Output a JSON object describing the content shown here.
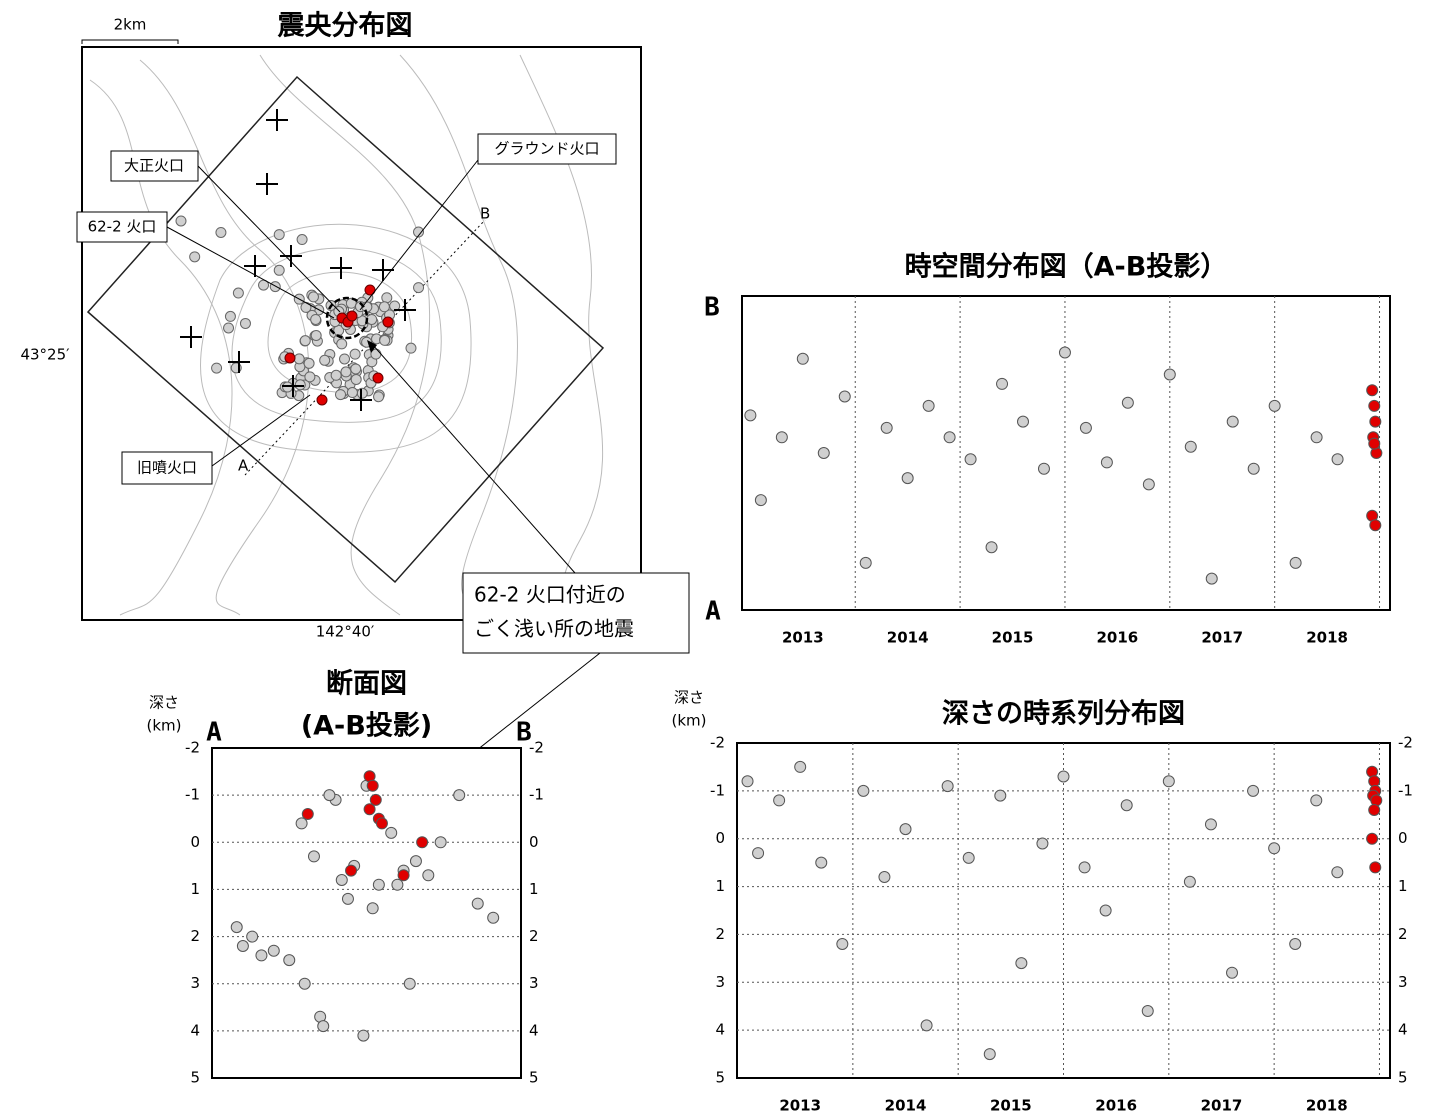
{
  "map": {
    "title": "震央分布図",
    "scale_label": "2km",
    "lat_label": "43°25′",
    "lon_label": "142°40′",
    "point_a": "A",
    "point_b": "B",
    "callouts": [
      "大正火口",
      "62-2 火口",
      "グラウンド火口",
      "旧噴火口"
    ],
    "note": [
      "62-2 火口付近の",
      "ごく浅い所の地震"
    ]
  },
  "chart_data": [
    {
      "type": "scatter",
      "title": "断面図",
      "subtitle": "(A-B投影)",
      "ylabel": [
        "深さ",
        "(km)"
      ],
      "x_start_label": "A",
      "x_end_label": "B",
      "xlim": [
        0,
        10
      ],
      "ylim": [
        -2,
        5
      ],
      "y_inverted": true,
      "yticks": [
        -2,
        -1,
        0,
        1,
        2,
        3,
        4,
        5
      ],
      "mirror_yticks": true,
      "grid_y": true,
      "series": [
        {
          "color": "#d0d0d0",
          "x": [
            0.8,
            1.0,
            1.3,
            1.6,
            2.0,
            2.5,
            3.0,
            3.5,
            3.6,
            4.0,
            2.9,
            3.3,
            3.8,
            4.2,
            4.6,
            5.0,
            5.4,
            5.8,
            6.2,
            6.6,
            7.0,
            4.4,
            5.2,
            6.0,
            7.4,
            8.0,
            8.6,
            9.1,
            4.9,
            6.4
          ],
          "values": [
            1.8,
            2.2,
            2.0,
            2.4,
            2.3,
            2.5,
            3.0,
            3.7,
            3.9,
            -0.9,
            -0.4,
            0.3,
            -1.0,
            0.8,
            0.5,
            -1.2,
            0.9,
            -0.2,
            0.6,
            0.4,
            0.7,
            1.2,
            1.4,
            0.9,
            0.0,
            -1.0,
            1.3,
            1.6,
            4.1,
            3.0
          ]
        },
        {
          "color": "#e00000",
          "x": [
            5.1,
            5.2,
            5.3,
            5.1,
            5.4,
            5.5,
            3.1,
            4.5,
            6.2,
            6.8
          ],
          "values": [
            -1.4,
            -1.2,
            -0.9,
            -0.7,
            -0.5,
            -0.4,
            -0.6,
            0.6,
            0.7,
            0.0
          ]
        }
      ]
    },
    {
      "type": "scatter",
      "title": "時空間分布図（A-B投影）",
      "y_bottom_label": "A",
      "y_top_label": "B",
      "xlim": [
        2012.92,
        2019.1
      ],
      "ylim": [
        0,
        1
      ],
      "xticks": [
        {
          "value": 2013.5,
          "label": "2013"
        },
        {
          "value": 2014.5,
          "label": "2014"
        },
        {
          "value": 2015.5,
          "label": "2015"
        },
        {
          "value": 2016.5,
          "label": "2016"
        },
        {
          "value": 2017.5,
          "label": "2017"
        },
        {
          "value": 2018.5,
          "label": "2018"
        }
      ],
      "xgrid": [
        2014,
        2015,
        2016,
        2017,
        2018,
        2019
      ],
      "series": [
        {
          "color": "#d0d0d0",
          "x": [
            2013.0,
            2013.1,
            2013.3,
            2013.5,
            2013.7,
            2013.9,
            2014.1,
            2014.3,
            2014.5,
            2014.7,
            2014.9,
            2015.1,
            2015.3,
            2015.4,
            2015.6,
            2015.8,
            2016.0,
            2016.2,
            2016.4,
            2016.6,
            2016.8,
            2017.0,
            2017.2,
            2017.4,
            2017.6,
            2017.8,
            2018.0,
            2018.2,
            2018.4,
            2018.6
          ],
          "values": [
            0.62,
            0.35,
            0.55,
            0.8,
            0.5,
            0.68,
            0.15,
            0.58,
            0.42,
            0.65,
            0.55,
            0.48,
            0.2,
            0.72,
            0.6,
            0.45,
            0.82,
            0.58,
            0.47,
            0.66,
            0.4,
            0.75,
            0.52,
            0.1,
            0.6,
            0.45,
            0.65,
            0.15,
            0.55,
            0.48
          ]
        },
        {
          "color": "#e00000",
          "x": [
            2018.93,
            2018.95,
            2018.96,
            2018.94,
            2018.97,
            2018.95,
            2018.93,
            2018.96
          ],
          "values": [
            0.7,
            0.65,
            0.6,
            0.55,
            0.5,
            0.53,
            0.3,
            0.27
          ]
        }
      ]
    },
    {
      "type": "scatter",
      "title": "深さの時系列分布図",
      "ylabel": [
        "深さ",
        "(km)"
      ],
      "xlim": [
        2012.9,
        2019.1
      ],
      "ylim": [
        -2,
        5
      ],
      "y_inverted": true,
      "yticks": [
        -2,
        -1,
        0,
        1,
        2,
        3,
        4,
        5
      ],
      "mirror_yticks": true,
      "grid_y": true,
      "xticks": [
        {
          "value": 2013.5,
          "label": "2013"
        },
        {
          "value": 2014.5,
          "label": "2014"
        },
        {
          "value": 2015.5,
          "label": "2015"
        },
        {
          "value": 2016.5,
          "label": "2016"
        },
        {
          "value": 2017.5,
          "label": "2017"
        },
        {
          "value": 2018.5,
          "label": "2018"
        }
      ],
      "xgrid": [
        2014,
        2015,
        2016,
        2017,
        2018,
        2019
      ],
      "series": [
        {
          "color": "#d0d0d0",
          "x": [
            2013.0,
            2013.1,
            2013.3,
            2013.5,
            2013.7,
            2013.9,
            2014.1,
            2014.3,
            2014.5,
            2014.7,
            2014.9,
            2015.1,
            2015.3,
            2015.4,
            2015.6,
            2015.8,
            2016.0,
            2016.2,
            2016.4,
            2016.6,
            2016.8,
            2017.0,
            2017.2,
            2017.4,
            2017.6,
            2017.8,
            2018.0,
            2018.2,
            2018.4,
            2018.6
          ],
          "values": [
            -1.2,
            0.3,
            -0.8,
            -1.5,
            0.5,
            2.2,
            -1.0,
            0.8,
            -0.2,
            3.9,
            -1.1,
            0.4,
            4.5,
            -0.9,
            2.6,
            0.1,
            -1.3,
            0.6,
            1.5,
            -0.7,
            3.6,
            -1.2,
            0.9,
            -0.3,
            2.8,
            -1.0,
            0.2,
            2.2,
            -0.8,
            0.7
          ]
        },
        {
          "color": "#e00000",
          "x": [
            2018.93,
            2018.95,
            2018.96,
            2018.94,
            2018.97,
            2018.95,
            2018.93,
            2018.96
          ],
          "values": [
            -1.4,
            -1.2,
            -1.0,
            -0.9,
            -0.8,
            -0.6,
            0.0,
            0.6
          ]
        }
      ]
    }
  ]
}
